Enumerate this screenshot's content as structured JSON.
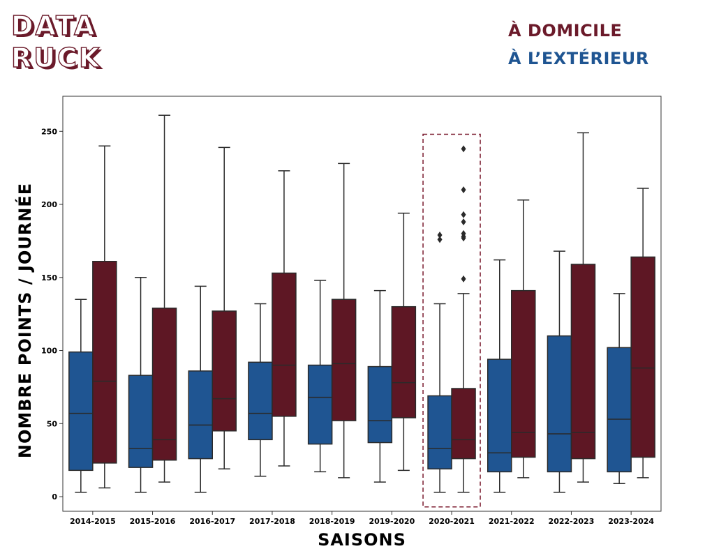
{
  "header": {
    "logo_line1": "DATA",
    "logo_line2": "RUCK",
    "legend": [
      {
        "label": "À DOMICILE",
        "color": "#6b1a2a"
      },
      {
        "label": "À L’EXTÉRIEUR",
        "color": "#1f5592"
      }
    ]
  },
  "colors": {
    "home": "#5e1724",
    "away": "#1f5592",
    "highlight": "#7a1a2e"
  },
  "chart_data": {
    "type": "boxplot",
    "xlabel": "SAISONS",
    "ylabel": "NOMBRE POINTS / JOURNÉE",
    "ylim": [
      -10,
      274
    ],
    "yticks": [
      0,
      50,
      100,
      150,
      200,
      250
    ],
    "categories": [
      "2014-2015",
      "2015-2016",
      "2016-2017",
      "2017-2018",
      "2018-2019",
      "2019-2020",
      "2020-2021",
      "2021-2022",
      "2022-2023",
      "2023-2024"
    ],
    "highlight_category": "2020-2021",
    "series": [
      {
        "key": "away",
        "boxes": [
          {
            "min": 3,
            "q1": 18,
            "median": 57,
            "q3": 99,
            "max": 135,
            "outliers": []
          },
          {
            "min": 3,
            "q1": 20,
            "median": 33,
            "q3": 83,
            "max": 150,
            "outliers": []
          },
          {
            "min": 3,
            "q1": 26,
            "median": 49,
            "q3": 86,
            "max": 144,
            "outliers": []
          },
          {
            "min": 14,
            "q1": 39,
            "median": 57,
            "q3": 92,
            "max": 132,
            "outliers": []
          },
          {
            "min": 17,
            "q1": 36,
            "median": 68,
            "q3": 90,
            "max": 148,
            "outliers": []
          },
          {
            "min": 10,
            "q1": 37,
            "median": 52,
            "q3": 89,
            "max": 141,
            "outliers": []
          },
          {
            "min": 3,
            "q1": 19,
            "median": 33,
            "q3": 69,
            "max": 132,
            "outliers": [
              176,
              179
            ]
          },
          {
            "min": 3,
            "q1": 17,
            "median": 30,
            "q3": 94,
            "max": 162,
            "outliers": []
          },
          {
            "min": 3,
            "q1": 17,
            "median": 43,
            "q3": 110,
            "max": 168,
            "outliers": []
          },
          {
            "min": 9,
            "q1": 17,
            "median": 53,
            "q3": 102,
            "max": 139,
            "outliers": []
          }
        ]
      },
      {
        "key": "home",
        "boxes": [
          {
            "min": 6,
            "q1": 23,
            "median": 79,
            "q3": 161,
            "max": 240,
            "outliers": []
          },
          {
            "min": 10,
            "q1": 25,
            "median": 39,
            "q3": 129,
            "max": 261,
            "outliers": []
          },
          {
            "min": 19,
            "q1": 45,
            "median": 67,
            "q3": 127,
            "max": 239,
            "outliers": []
          },
          {
            "min": 21,
            "q1": 55,
            "median": 90,
            "q3": 153,
            "max": 223,
            "outliers": []
          },
          {
            "min": 13,
            "q1": 52,
            "median": 91,
            "q3": 135,
            "max": 228,
            "outliers": []
          },
          {
            "min": 18,
            "q1": 54,
            "median": 78,
            "q3": 130,
            "max": 194,
            "outliers": []
          },
          {
            "min": 3,
            "q1": 26,
            "median": 39,
            "q3": 74,
            "max": 139,
            "outliers": [
              149,
              177,
              178,
              180,
              188,
              193,
              210,
              238
            ]
          },
          {
            "min": 13,
            "q1": 27,
            "median": 44,
            "q3": 141,
            "max": 203,
            "outliers": []
          },
          {
            "min": 10,
            "q1": 26,
            "median": 44,
            "q3": 159,
            "max": 249,
            "outliers": []
          },
          {
            "min": 13,
            "q1": 27,
            "median": 88,
            "q3": 164,
            "max": 211,
            "outliers": []
          }
        ]
      }
    ]
  }
}
